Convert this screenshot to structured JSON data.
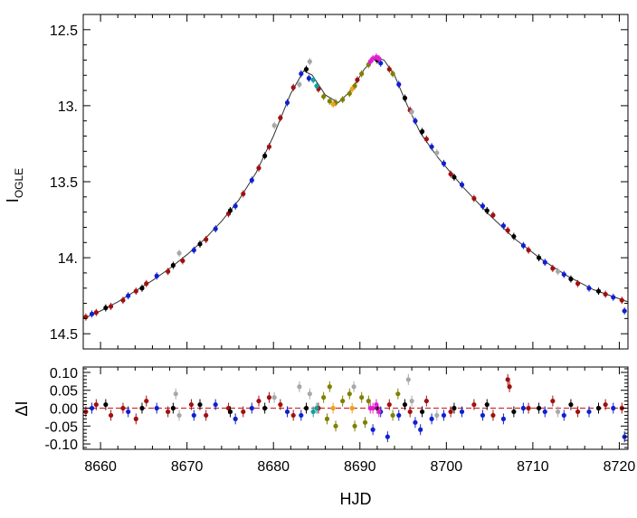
{
  "chart_data": [
    {
      "type": "scatter",
      "panel": "light-curve",
      "ylabel_main": "I",
      "ylabel_sub": "OGLE",
      "xlim": [
        8658,
        8721
      ],
      "ylim": [
        12.4,
        14.6
      ],
      "y_inverted": true,
      "grid": false,
      "xticks": [
        8660,
        8670,
        8680,
        8690,
        8700,
        8710,
        8720
      ],
      "yticks": [
        {
          "value": 12.5,
          "label": "12.5"
        },
        {
          "value": 13.0,
          "label": "13."
        },
        {
          "value": 13.5,
          "label": "13.5"
        },
        {
          "value": 14.0,
          "label": "14."
        },
        {
          "value": 14.5,
          "label": "14.5"
        }
      ],
      "model_curve": [
        [
          8658,
          14.4
        ],
        [
          8660,
          14.35
        ],
        [
          8662,
          14.29
        ],
        [
          8664,
          14.22
        ],
        [
          8666,
          14.15
        ],
        [
          8668,
          14.07
        ],
        [
          8670,
          13.98
        ],
        [
          8672,
          13.88
        ],
        [
          8674,
          13.76
        ],
        [
          8676,
          13.62
        ],
        [
          8678,
          13.44
        ],
        [
          8680,
          13.2
        ],
        [
          8682,
          12.92
        ],
        [
          8683.5,
          12.77
        ],
        [
          8684.5,
          12.8
        ],
        [
          8686,
          12.93
        ],
        [
          8687.5,
          12.98
        ],
        [
          8689,
          12.9
        ],
        [
          8690.5,
          12.76
        ],
        [
          8691.8,
          12.68
        ],
        [
          8692.8,
          12.7
        ],
        [
          8694,
          12.8
        ],
        [
          8695.5,
          13.0
        ],
        [
          8697,
          13.18
        ],
        [
          8699,
          13.34
        ],
        [
          8702,
          13.54
        ],
        [
          8705,
          13.72
        ],
        [
          8708,
          13.88
        ],
        [
          8711,
          14.01
        ],
        [
          8714,
          14.12
        ],
        [
          8717,
          14.21
        ],
        [
          8720,
          14.27
        ],
        [
          8721,
          14.29
        ]
      ],
      "series": [
        {
          "color": "#a01010",
          "points": [
            [
              8658.3,
              14.39
            ],
            [
              8659.5,
              14.36
            ],
            [
              8661.2,
              14.32
            ],
            [
              8662.6,
              14.28
            ],
            [
              8664.1,
              14.22
            ],
            [
              8665.3,
              14.17
            ],
            [
              8667.8,
              14.09
            ],
            [
              8669.5,
              14.02
            ],
            [
              8672.2,
              13.88
            ],
            [
              8674.8,
              13.71
            ],
            [
              8676.5,
              13.58
            ],
            [
              8678.3,
              13.41
            ],
            [
              8679.5,
              13.27
            ],
            [
              8680.8,
              13.08
            ],
            [
              8682.3,
              12.88
            ],
            [
              8685.2,
              12.89
            ],
            [
              8689.7,
              12.83
            ],
            [
              8693.4,
              12.76
            ],
            [
              8695.8,
              13.03
            ],
            [
              8697.7,
              13.22
            ],
            [
              8700.5,
              13.45
            ],
            [
              8703.2,
              13.61
            ],
            [
              8705.4,
              13.72
            ],
            [
              8707.1,
              13.82
            ],
            [
              8709.5,
              13.95
            ],
            [
              8712.3,
              14.07
            ],
            [
              8715.2,
              14.17
            ],
            [
              8718.4,
              14.24
            ],
            [
              8720.3,
              14.28
            ]
          ]
        },
        {
          "color": "#1020d0",
          "points": [
            [
              8659.0,
              14.37
            ],
            [
              8663.2,
              14.25
            ],
            [
              8666.5,
              14.12
            ],
            [
              8670.8,
              13.95
            ],
            [
              8673.3,
              13.81
            ],
            [
              8675.6,
              13.66
            ],
            [
              8677.5,
              13.49
            ],
            [
              8681.6,
              12.98
            ],
            [
              8683.2,
              12.79
            ],
            [
              8684.1,
              12.82
            ],
            [
              8692.4,
              12.72
            ],
            [
              8694.5,
              12.86
            ],
            [
              8696.4,
              13.1
            ],
            [
              8698.3,
              13.27
            ],
            [
              8699.7,
              13.38
            ],
            [
              8701.8,
              13.52
            ],
            [
              8704.2,
              13.66
            ],
            [
              8706.6,
              13.79
            ],
            [
              8708.9,
              13.92
            ],
            [
              8711.4,
              14.03
            ],
            [
              8713.6,
              14.11
            ],
            [
              8716.5,
              14.2
            ],
            [
              8719.3,
              14.26
            ],
            [
              8720.6,
              14.35
            ]
          ]
        },
        {
          "color": "#000000",
          "points": [
            [
              8660.6,
              14.33
            ],
            [
              8664.8,
              14.2
            ],
            [
              8668.4,
              14.05
            ],
            [
              8671.5,
              13.91
            ],
            [
              8675.0,
              13.69
            ],
            [
              8679.0,
              13.33
            ],
            [
              8683.8,
              12.76
            ],
            [
              8692.0,
              12.7
            ],
            [
              8695.2,
              12.95
            ],
            [
              8697.2,
              13.17
            ],
            [
              8700.9,
              13.47
            ],
            [
              8704.7,
              13.69
            ],
            [
              8707.8,
              13.86
            ],
            [
              8710.7,
              14.0
            ],
            [
              8714.4,
              14.14
            ],
            [
              8717.6,
              14.22
            ]
          ]
        },
        {
          "color": "#a8a8a8",
          "points": [
            [
              8669.1,
              13.97
            ],
            [
              8680.1,
              13.13
            ],
            [
              8684.2,
              12.71
            ],
            [
              8683.0,
              12.86
            ],
            [
              8696.0,
              13.04
            ],
            [
              8698.9,
              13.31
            ],
            [
              8712.9,
              14.09
            ]
          ]
        },
        {
          "color": "#808000",
          "points": [
            [
              8685.8,
              12.94
            ],
            [
              8686.5,
              12.97
            ],
            [
              8687.2,
              12.98
            ],
            [
              8688.0,
              12.96
            ],
            [
              8688.8,
              12.92
            ],
            [
              8689.4,
              12.87
            ],
            [
              8690.2,
              12.79
            ],
            [
              8691.0,
              12.73
            ],
            [
              8693.8,
              12.79
            ]
          ]
        },
        {
          "color": "#e020d0",
          "points": [
            [
              8691.5,
              12.69
            ],
            [
              8691.9,
              12.68
            ],
            [
              8692.2,
              12.69
            ],
            [
              8691.2,
              12.71
            ]
          ]
        },
        {
          "color": "#f0a020",
          "points": [
            [
              8686.9,
              12.99
            ],
            [
              8689.1,
              12.89
            ]
          ]
        },
        {
          "color": "#10a0a0",
          "points": [
            [
              8684.6,
              12.83
            ],
            [
              8685.0,
              12.87
            ]
          ]
        }
      ]
    },
    {
      "type": "scatter",
      "panel": "residuals",
      "ylabel": "ΔI",
      "xlabel": "HJD",
      "xlim": [
        8658,
        8721
      ],
      "ylim": [
        -0.115,
        0.115
      ],
      "grid": false,
      "xticks": [
        8660,
        8670,
        8680,
        8690,
        8700,
        8710,
        8720
      ],
      "yticks": [
        {
          "value": 0.1,
          "label": "0.10"
        },
        {
          "value": 0.05,
          "label": "0.05"
        },
        {
          "value": 0.0,
          "label": "0.00"
        },
        {
          "value": -0.05,
          "label": "-0.05"
        },
        {
          "value": -0.1,
          "label": "-0.10"
        }
      ],
      "zero_line_color": "#d03030",
      "series": [
        {
          "color": "#a01010",
          "points": [
            [
              8658.3,
              -0.01
            ],
            [
              8659.5,
              0.01
            ],
            [
              8661.2,
              -0.02
            ],
            [
              8662.6,
              0.0
            ],
            [
              8664.1,
              -0.03
            ],
            [
              8665.3,
              0.02
            ],
            [
              8667.8,
              -0.01
            ],
            [
              8670.5,
              0.01
            ],
            [
              8672.2,
              -0.02
            ],
            [
              8674.8,
              0.0
            ],
            [
              8676.5,
              -0.01
            ],
            [
              8678.3,
              0.02
            ],
            [
              8679.5,
              0.03
            ],
            [
              8680.8,
              0.01
            ],
            [
              8682.3,
              -0.02
            ],
            [
              8685.2,
              0.0
            ],
            [
              8693.4,
              0.01
            ],
            [
              8695.8,
              -0.01
            ],
            [
              8697.7,
              0.02
            ],
            [
              8700.5,
              -0.01
            ],
            [
              8703.2,
              0.01
            ],
            [
              8705.4,
              -0.02
            ],
            [
              8707.1,
              0.08
            ],
            [
              8707.3,
              0.06
            ],
            [
              8709.5,
              0.0
            ],
            [
              8712.3,
              0.02
            ],
            [
              8715.2,
              -0.01
            ],
            [
              8718.4,
              0.01
            ],
            [
              8720.3,
              0.0
            ]
          ]
        },
        {
          "color": "#1020d0",
          "points": [
            [
              8659.0,
              0.0
            ],
            [
              8663.2,
              -0.01
            ],
            [
              8666.5,
              0.0
            ],
            [
              8670.8,
              -0.02
            ],
            [
              8673.3,
              0.01
            ],
            [
              8675.6,
              -0.03
            ],
            [
              8677.5,
              0.0
            ],
            [
              8681.6,
              -0.01
            ],
            [
              8683.2,
              -0.02
            ],
            [
              8692.4,
              -0.01
            ],
            [
              8694.5,
              -0.02
            ],
            [
              8696.4,
              -0.04
            ],
            [
              8697.0,
              -0.06
            ],
            [
              8698.3,
              -0.03
            ],
            [
              8699.7,
              -0.02
            ],
            [
              8701.8,
              -0.01
            ],
            [
              8704.2,
              -0.02
            ],
            [
              8706.6,
              -0.03
            ],
            [
              8708.9,
              0.0
            ],
            [
              8711.4,
              -0.01
            ],
            [
              8713.6,
              -0.02
            ],
            [
              8716.5,
              -0.01
            ],
            [
              8719.3,
              0.0
            ],
            [
              8720.6,
              -0.08
            ],
            [
              8693.2,
              -0.08
            ],
            [
              8691.5,
              -0.06
            ]
          ]
        },
        {
          "color": "#000000",
          "points": [
            [
              8660.6,
              0.01
            ],
            [
              8664.8,
              0.0
            ],
            [
              8668.4,
              0.0
            ],
            [
              8671.5,
              0.01
            ],
            [
              8675.0,
              -0.01
            ],
            [
              8679.0,
              0.0
            ],
            [
              8683.8,
              0.0
            ],
            [
              8692.0,
              0.0
            ],
            [
              8695.2,
              0.01
            ],
            [
              8697.2,
              -0.01
            ],
            [
              8700.9,
              0.0
            ],
            [
              8704.7,
              0.01
            ],
            [
              8707.8,
              -0.01
            ],
            [
              8710.7,
              0.0
            ],
            [
              8714.4,
              0.01
            ],
            [
              8717.6,
              0.0
            ]
          ]
        },
        {
          "color": "#a8a8a8",
          "points": [
            [
              8668.7,
              0.04
            ],
            [
              8669.1,
              -0.02
            ],
            [
              8680.1,
              0.03
            ],
            [
              8683.0,
              0.06
            ],
            [
              8684.2,
              0.04
            ],
            [
              8689.3,
              0.06
            ],
            [
              8695.6,
              0.08
            ],
            [
              8696.0,
              0.02
            ],
            [
              8698.9,
              -0.02
            ],
            [
              8712.9,
              -0.01
            ]
          ]
        },
        {
          "color": "#808000",
          "points": [
            [
              8685.8,
              0.03
            ],
            [
              8686.5,
              0.06
            ],
            [
              8687.2,
              -0.05
            ],
            [
              8688.0,
              0.02
            ],
            [
              8688.8,
              0.04
            ],
            [
              8689.4,
              -0.05
            ],
            [
              8690.2,
              0.03
            ],
            [
              8691.0,
              0.02
            ],
            [
              8693.8,
              -0.02
            ],
            [
              8694.4,
              0.04
            ],
            [
              8686.2,
              -0.03
            ],
            [
              8690.6,
              -0.04
            ]
          ]
        },
        {
          "color": "#e020d0",
          "points": [
            [
              8691.5,
              0.0
            ],
            [
              8691.9,
              0.01
            ],
            [
              8692.2,
              -0.01
            ],
            [
              8691.2,
              0.0
            ]
          ]
        },
        {
          "color": "#f0a020",
          "points": [
            [
              8686.9,
              0.0
            ],
            [
              8689.1,
              0.0
            ]
          ]
        },
        {
          "color": "#10a0a0",
          "points": [
            [
              8684.6,
              -0.01
            ],
            [
              8685.0,
              0.0
            ]
          ]
        }
      ]
    }
  ]
}
